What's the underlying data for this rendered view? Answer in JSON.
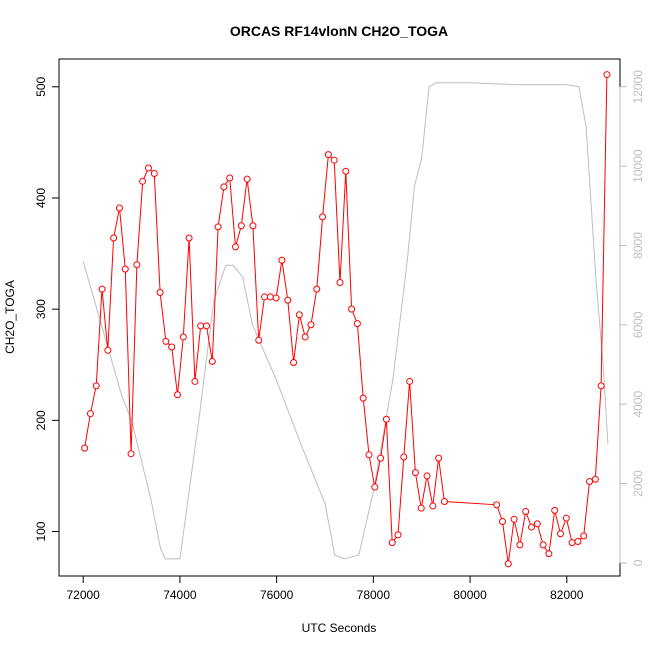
{
  "chart_data": {
    "type": "line",
    "title": "ORCAS RF14vlonN CH2O_TOGA",
    "xlabel": "UTC Seconds",
    "ylabel": "CH2O_TOGA",
    "xlim": [
      71500,
      83100
    ],
    "ylim": [
      60,
      525
    ],
    "y2lim": [
      -330,
      12700
    ],
    "x_ticks": [
      72000,
      74000,
      76000,
      78000,
      80000,
      82000
    ],
    "y_ticks": [
      100,
      200,
      300,
      400,
      500
    ],
    "y2_ticks": [
      0,
      2000,
      4000,
      6000,
      8000,
      10000,
      12000
    ],
    "grid": false,
    "legend": "none",
    "series": [
      {
        "color": "#ff0000",
        "marker": "open-circle",
        "axis": "left",
        "x": [
          72030,
          72150,
          72270,
          72390,
          72510,
          72630,
          72750,
          72870,
          72990,
          73110,
          73230,
          73350,
          73470,
          73590,
          73710,
          73830,
          73950,
          74070,
          74190,
          74310,
          74430,
          74550,
          74670,
          74790,
          74910,
          75030,
          75150,
          75270,
          75390,
          75510,
          75630,
          75750,
          75870,
          75990,
          76110,
          76230,
          76350,
          76470,
          76590,
          76710,
          76830,
          76950,
          77070,
          77190,
          77310,
          77430,
          77550,
          77670,
          77790,
          77910,
          78030,
          78150,
          78270,
          78390,
          78510,
          78630,
          78750,
          78870,
          78990,
          79110,
          79230,
          79350,
          79470,
          80550,
          80670,
          80790,
          80910,
          81030,
          81150,
          81270,
          81390,
          81510,
          81630,
          81750,
          81870,
          81990,
          82110,
          82230,
          82350,
          82470,
          82590,
          82710,
          82830
        ],
        "y": [
          175,
          206,
          231,
          318,
          263,
          364,
          391,
          336,
          170,
          340,
          415,
          427,
          422,
          315,
          271,
          266,
          223,
          275,
          364,
          235,
          285,
          285,
          253,
          374,
          410,
          418,
          356,
          375,
          417,
          375,
          272,
          311,
          311,
          310,
          344,
          308,
          252,
          295,
          275,
          286,
          318,
          383,
          439,
          434,
          324,
          424,
          300,
          287,
          220,
          169,
          140,
          166,
          201,
          90,
          97,
          167,
          235,
          153,
          121,
          150,
          123,
          166,
          127,
          124,
          109,
          71,
          111,
          88,
          118,
          104,
          107,
          88,
          80,
          119,
          98,
          112,
          90,
          91,
          96,
          145,
          147,
          231,
          511
        ]
      },
      {
        "color": "#bebebe",
        "marker": "none",
        "axis": "right",
        "x": [
          72000,
          72800,
          73000,
          73400,
          73600,
          73700,
          74000,
          74400,
          74700,
          74950,
          75100,
          75300,
          75500,
          76000,
          76500,
          77000,
          77200,
          77400,
          77700,
          78000,
          78400,
          78700,
          78850,
          79000,
          79150,
          79300,
          79500,
          80000,
          81000,
          82000,
          82250,
          82400,
          82600,
          82750,
          82850
        ],
        "y": [
          7600,
          4200,
          3600,
          1600,
          350,
          100,
          100,
          3700,
          6600,
          7500,
          7500,
          7200,
          6000,
          4600,
          3000,
          1500,
          200,
          100,
          200,
          1800,
          4600,
          7600,
          9500,
          10200,
          12000,
          12100,
          12100,
          12100,
          12050,
          12050,
          12000,
          11000,
          7200,
          5000,
          3000
        ]
      }
    ]
  }
}
